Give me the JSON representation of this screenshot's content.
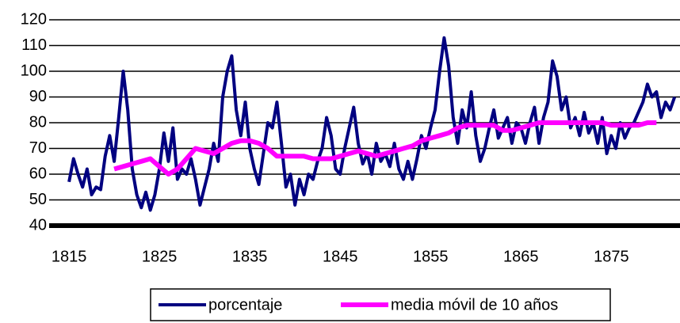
{
  "chart_data": {
    "type": "line",
    "xlim": [
      1812.8,
      1882.6
    ],
    "xticks": [
      1815,
      1825,
      1835,
      1845,
      1855,
      1865,
      1875
    ],
    "ylim": [
      40,
      120
    ],
    "yticks": [
      40,
      50,
      60,
      70,
      80,
      90,
      100,
      110,
      120
    ],
    "grid": true,
    "legend": "bottom",
    "series": [
      {
        "name": "porcentaje",
        "color": "#000080",
        "x": [
          1815,
          1815.5,
          1816,
          1816.5,
          1817,
          1817.5,
          1818,
          1818.5,
          1819,
          1819.5,
          1820,
          1820.5,
          1821,
          1821.5,
          1822,
          1822.5,
          1823,
          1823.5,
          1824,
          1824.5,
          1825,
          1825.5,
          1826,
          1826.5,
          1827,
          1827.5,
          1828,
          1828.5,
          1829,
          1829.5,
          1830,
          1830.5,
          1831,
          1831.5,
          1832,
          1832.5,
          1833,
          1833.5,
          1834,
          1834.5,
          1835,
          1835.5,
          1836,
          1836.5,
          1837,
          1837.5,
          1838,
          1838.5,
          1839,
          1839.5,
          1840,
          1840.5,
          1841,
          1841.5,
          1842,
          1842.5,
          1843,
          1843.5,
          1844,
          1844.5,
          1845,
          1845.5,
          1846,
          1846.5,
          1847,
          1847.5,
          1848,
          1848.5,
          1849,
          1849.5,
          1850,
          1850.5,
          1851,
          1851.5,
          1852,
          1852.5,
          1853,
          1853.5,
          1854,
          1854.5,
          1855,
          1855.5,
          1856,
          1856.5,
          1857,
          1857.5,
          1858,
          1858.5,
          1859,
          1859.5,
          1860,
          1860.5,
          1861,
          1861.5,
          1862,
          1862.5,
          1863,
          1863.5,
          1864,
          1864.5,
          1865,
          1865.5,
          1866,
          1866.5,
          1867,
          1867.5,
          1868,
          1868.5,
          1869,
          1869.5,
          1870,
          1870.5,
          1871,
          1871.5,
          1872,
          1872.5,
          1873,
          1873.5,
          1874,
          1874.5,
          1875,
          1875.5,
          1876,
          1876.5,
          1877,
          1877.5,
          1878,
          1878.5,
          1879,
          1879.5,
          1880,
          1880.5,
          1881,
          1881.5,
          1882
        ],
        "values": [
          57,
          66,
          60,
          55,
          62,
          52,
          55,
          54,
          67,
          75,
          65,
          82,
          100,
          85,
          62,
          52,
          47,
          53,
          46,
          52,
          62,
          76,
          65,
          78,
          58,
          62,
          60,
          66,
          58,
          48,
          55,
          62,
          72,
          65,
          90,
          100,
          106,
          85,
          75,
          88,
          70,
          62,
          56,
          68,
          80,
          78,
          88,
          72,
          55,
          60,
          48,
          58,
          52,
          60,
          58,
          65,
          70,
          82,
          75,
          62,
          60,
          70,
          78,
          86,
          72,
          64,
          68,
          60,
          72,
          65,
          68,
          63,
          72,
          62,
          58,
          65,
          58,
          66,
          75,
          70,
          78,
          85,
          100,
          113,
          102,
          82,
          72,
          85,
          78,
          92,
          75,
          65,
          70,
          78,
          85,
          74,
          78,
          82,
          72,
          80,
          78,
          72,
          80,
          86,
          72,
          82,
          88,
          104,
          98,
          85,
          90,
          78,
          82,
          75,
          84,
          76,
          80,
          72,
          82,
          68,
          75,
          70,
          80,
          74,
          78,
          80,
          84,
          88,
          95,
          90,
          92,
          82,
          88,
          85,
          90
        ]
      },
      {
        "name": "media móvil de 10 años",
        "color": "#ff00ff",
        "x": [
          1820,
          1821,
          1822,
          1823,
          1824,
          1825,
          1826,
          1827,
          1828,
          1829,
          1830,
          1831,
          1832,
          1833,
          1834,
          1835,
          1836,
          1837,
          1838,
          1839,
          1840,
          1841,
          1842,
          1843,
          1844,
          1845,
          1846,
          1847,
          1848,
          1849,
          1850,
          1851,
          1852,
          1853,
          1854,
          1855,
          1856,
          1857,
          1858,
          1859,
          1860,
          1861,
          1862,
          1863,
          1864,
          1865,
          1866,
          1867,
          1868,
          1869,
          1870,
          1871,
          1872,
          1873,
          1874,
          1875,
          1876,
          1877,
          1878,
          1879,
          1880
        ],
        "values": [
          62,
          63,
          64,
          65,
          66,
          63,
          60,
          62,
          66,
          70,
          69,
          68,
          70,
          72,
          73,
          73,
          72,
          70,
          67,
          67,
          67,
          67,
          66,
          66,
          66,
          67,
          68,
          69,
          68,
          67,
          68,
          69,
          70,
          71,
          73,
          74,
          75,
          76,
          78,
          79,
          79,
          79,
          79,
          77,
          77,
          78,
          79,
          80,
          80,
          80,
          80,
          80,
          80,
          80,
          80,
          79,
          79,
          79,
          79,
          80,
          80
        ]
      }
    ]
  }
}
